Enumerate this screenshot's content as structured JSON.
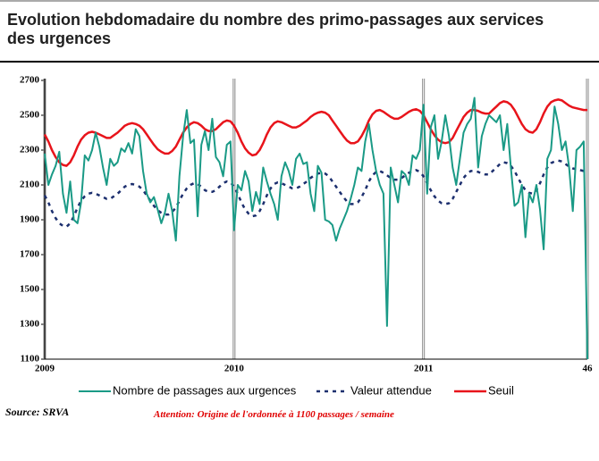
{
  "chart_data": {
    "type": "line",
    "title": "Evolution hebdomadaire du nombre des primo-passages aux services des urgences",
    "source": "Source: SRVA",
    "note": "Attention: Origine de l'ordonnée à 1100 passages / semaine",
    "xlim": [
      0,
      149
    ],
    "xticks": [
      {
        "value": 0,
        "label": "2009"
      },
      {
        "value": 52,
        "label": "2010"
      },
      {
        "value": 104,
        "label": "2011"
      },
      {
        "value": 149,
        "label": "46"
      }
    ],
    "ylim": [
      1100,
      2700
    ],
    "yticks": [
      1100,
      1300,
      1500,
      1700,
      1900,
      2100,
      2300,
      2500,
      2700
    ],
    "grid": false,
    "legend": "bottom",
    "series": [
      {
        "name": "Nombre de passages aux urgences",
        "color": "#1a9a86",
        "style": "solid",
        "values": [
          2280,
          2100,
          2160,
          2210,
          2290,
          2050,
          1940,
          2120,
          1900,
          1880,
          2000,
          2270,
          2240,
          2300,
          2400,
          2320,
          2200,
          2100,
          2250,
          2210,
          2230,
          2310,
          2290,
          2340,
          2280,
          2420,
          2380,
          2180,
          2050,
          2000,
          2030,
          1960,
          1880,
          1940,
          2050,
          1950,
          1780,
          2150,
          2380,
          2530,
          2340,
          2360,
          1920,
          2330,
          2410,
          2300,
          2480,
          2260,
          2230,
          2150,
          2330,
          2350,
          1840,
          2100,
          2070,
          2180,
          2120,
          1950,
          2060,
          1990,
          2200,
          2120,
          2050,
          1990,
          1900,
          2150,
          2230,
          2180,
          2100,
          2250,
          2280,
          2220,
          2230,
          2050,
          1950,
          2210,
          2170,
          1900,
          1890,
          1870,
          1780,
          1850,
          1900,
          1950,
          2020,
          2100,
          2200,
          2180,
          2350,
          2450,
          2300,
          2180,
          2100,
          2050,
          1290,
          2200,
          2100,
          2000,
          2180,
          2160,
          2100,
          2270,
          2250,
          2300,
          2560,
          2050,
          2430,
          2500,
          2250,
          2350,
          2500,
          2380,
          2200,
          2100,
          2250,
          2400,
          2450,
          2480,
          2600,
          2200,
          2380,
          2450,
          2500,
          2480,
          2460,
          2500,
          2300,
          2450,
          2200,
          1980,
          2000,
          2100,
          1800,
          2050,
          2000,
          2100,
          1960,
          1730,
          2250,
          2300,
          2550,
          2450,
          2300,
          2350,
          2200,
          1950,
          2300,
          2320,
          2350,
          1100
        ]
      },
      {
        "name": "Valeur attendue",
        "color": "#1c2f6e",
        "style": "dotted",
        "values": [
          2040,
          2000,
          1950,
          1910,
          1880,
          1865,
          1860,
          1880,
          1920,
          1970,
          2010,
          2035,
          2050,
          2055,
          2050,
          2040,
          2030,
          2020,
          2020,
          2035,
          2050,
          2070,
          2090,
          2100,
          2105,
          2100,
          2090,
          2070,
          2040,
          2010,
          1980,
          1955,
          1940,
          1930,
          1930,
          1945,
          1970,
          2010,
          2050,
          2080,
          2100,
          2110,
          2105,
          2090,
          2070,
          2060,
          2060,
          2070,
          2090,
          2110,
          2120,
          2115,
          2090,
          2050,
          2000,
          1960,
          1935,
          1920,
          1925,
          1950,
          1990,
          2040,
          2080,
          2105,
          2115,
          2110,
          2100,
          2090,
          2080,
          2080,
          2090,
          2105,
          2120,
          2140,
          2155,
          2165,
          2170,
          2165,
          2150,
          2120,
          2090,
          2060,
          2030,
          2005,
          1990,
          1990,
          2000,
          2030,
          2070,
          2120,
          2155,
          2175,
          2180,
          2170,
          2155,
          2140,
          2130,
          2130,
          2140,
          2155,
          2170,
          2180,
          2185,
          2175,
          2150,
          2110,
          2070,
          2035,
          2010,
          1995,
          1990,
          1995,
          2020,
          2060,
          2100,
          2140,
          2165,
          2180,
          2180,
          2175,
          2165,
          2160,
          2160,
          2180,
          2200,
          2220,
          2230,
          2225,
          2210,
          2180,
          2140,
          2100,
          2070,
          2055,
          2050,
          2070,
          2110,
          2160,
          2200,
          2225,
          2235,
          2240,
          2235,
          2220,
          2205,
          2195,
          2190,
          2185,
          2180,
          2180
        ]
      },
      {
        "name": "Seuil",
        "color": "#e8141b",
        "style": "solid",
        "values": [
          2390,
          2350,
          2300,
          2260,
          2230,
          2215,
          2210,
          2230,
          2270,
          2320,
          2360,
          2385,
          2400,
          2405,
          2400,
          2390,
          2380,
          2370,
          2370,
          2385,
          2400,
          2420,
          2440,
          2450,
          2455,
          2450,
          2440,
          2420,
          2390,
          2360,
          2330,
          2305,
          2290,
          2280,
          2280,
          2295,
          2320,
          2360,
          2400,
          2430,
          2450,
          2460,
          2455,
          2440,
          2420,
          2410,
          2410,
          2420,
          2440,
          2460,
          2470,
          2465,
          2440,
          2400,
          2350,
          2310,
          2285,
          2270,
          2275,
          2300,
          2340,
          2390,
          2430,
          2455,
          2465,
          2460,
          2450,
          2440,
          2430,
          2430,
          2440,
          2455,
          2470,
          2490,
          2505,
          2515,
          2520,
          2515,
          2500,
          2470,
          2440,
          2410,
          2380,
          2355,
          2340,
          2340,
          2350,
          2380,
          2420,
          2470,
          2505,
          2525,
          2530,
          2520,
          2505,
          2490,
          2480,
          2480,
          2490,
          2505,
          2520,
          2530,
          2535,
          2525,
          2500,
          2460,
          2420,
          2385,
          2360,
          2345,
          2340,
          2345,
          2370,
          2410,
          2450,
          2490,
          2515,
          2530,
          2530,
          2525,
          2515,
          2510,
          2510,
          2530,
          2550,
          2570,
          2580,
          2575,
          2560,
          2530,
          2490,
          2450,
          2420,
          2405,
          2400,
          2420,
          2460,
          2510,
          2550,
          2575,
          2585,
          2590,
          2585,
          2570,
          2555,
          2545,
          2540,
          2535,
          2530,
          2530
        ]
      }
    ]
  }
}
